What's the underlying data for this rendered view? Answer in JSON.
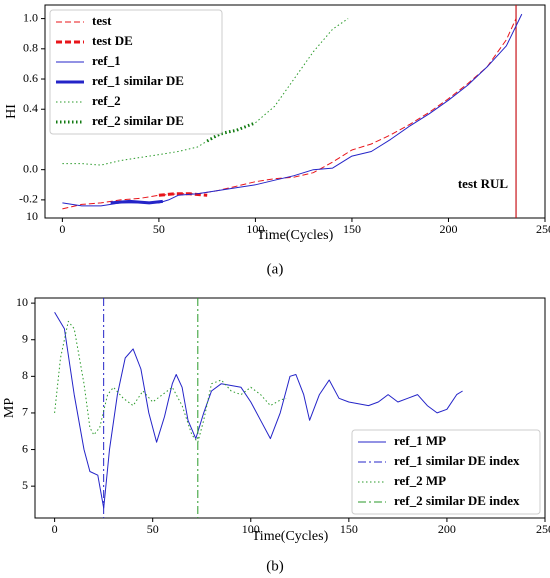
{
  "chart_data": [
    {
      "type": "line",
      "ylabel": "HI",
      "xlabel": "Time(Cycles)",
      "caption": "(a)",
      "xlim": [
        -9,
        250
      ],
      "ylim": [
        -0.32,
        1.09
      ],
      "xticks": [
        0,
        50,
        100,
        150,
        200,
        250
      ],
      "yticks": [
        {
          "value": 1,
          "label": "1.0"
        },
        0.8,
        0.6,
        0.4,
        {
          "value": 0,
          "label": "0.0"
        },
        -0.2
      ],
      "annotations": [
        "10"
      ],
      "legend": "upper left",
      "series": [
        {
          "name": "test",
          "color": "#e8141a",
          "dash": "dashed",
          "width": 1,
          "x": [
            0,
            10,
            20,
            30,
            40,
            50,
            60,
            70,
            80,
            90,
            100,
            110,
            120,
            130,
            140,
            150,
            160,
            170,
            180,
            190,
            200,
            210,
            220,
            230,
            235
          ],
          "values": [
            -0.26,
            -0.23,
            -0.22,
            -0.2,
            -0.19,
            -0.17,
            -0.16,
            -0.16,
            -0.14,
            -0.11,
            -0.08,
            -0.06,
            -0.05,
            -0.02,
            0.05,
            0.13,
            0.17,
            0.23,
            0.3,
            0.38,
            0.47,
            0.57,
            0.68,
            0.86,
            1.0
          ]
        },
        {
          "name": "test DE",
          "color": "#e8141a",
          "dash": "dashed",
          "width": 3,
          "x": [
            50,
            58,
            66,
            75
          ],
          "values": [
            -0.17,
            -0.16,
            -0.16,
            -0.17
          ]
        },
        {
          "name": "ref_1",
          "color": "#2424c8",
          "dash": "solid",
          "width": 1,
          "x": [
            0,
            10,
            20,
            30,
            40,
            50,
            55,
            60,
            70,
            80,
            90,
            100,
            110,
            120,
            130,
            140,
            150,
            160,
            170,
            180,
            190,
            200,
            210,
            220,
            230,
            238
          ],
          "values": [
            -0.22,
            -0.24,
            -0.24,
            -0.22,
            -0.22,
            -0.22,
            -0.2,
            -0.17,
            -0.16,
            -0.14,
            -0.12,
            -0.1,
            -0.07,
            -0.04,
            0.0,
            0.01,
            0.09,
            0.12,
            0.2,
            0.29,
            0.37,
            0.46,
            0.56,
            0.68,
            0.82,
            1.03
          ]
        },
        {
          "name": "ref_1 similar DE",
          "color": "#2424c8",
          "dash": "solid",
          "width": 3,
          "x": [
            25,
            35,
            45,
            52
          ],
          "values": [
            -0.22,
            -0.21,
            -0.22,
            -0.21
          ]
        },
        {
          "name": "ref_2",
          "color": "#2a9a2a",
          "dash": "dotted",
          "width": 1,
          "x": [
            0,
            10,
            20,
            30,
            40,
            50,
            60,
            70,
            75,
            80,
            90,
            100,
            110,
            120,
            130,
            140,
            148
          ],
          "values": [
            0.04,
            0.04,
            0.03,
            0.06,
            0.08,
            0.1,
            0.12,
            0.15,
            0.19,
            0.22,
            0.26,
            0.31,
            0.42,
            0.6,
            0.78,
            0.93,
            1.0
          ]
        },
        {
          "name": "ref_2 similar DE",
          "color": "#127a12",
          "dash": "dotted",
          "width": 3,
          "x": [
            75,
            82,
            90,
            100
          ],
          "values": [
            0.19,
            0.24,
            0.26,
            0.31
          ]
        }
      ],
      "vlines": [
        {
          "x": 235,
          "color": "#c8141a",
          "label": "test RUL"
        }
      ]
    },
    {
      "type": "line",
      "ylabel": "MP",
      "xlabel": "Time(Cycles)",
      "caption": "(b)",
      "xlim": [
        -10,
        250
      ],
      "ylim": [
        4.13,
        10.14
      ],
      "xticks": [
        0,
        50,
        100,
        150,
        200,
        250
      ],
      "yticks": [
        10,
        9,
        8,
        7,
        6,
        5
      ],
      "legend": "lower right",
      "series": [
        {
          "name": "ref_1 MP",
          "color": "#2424c8",
          "dash": "solid",
          "width": 1,
          "x": [
            0,
            5,
            10,
            15,
            18,
            22,
            25,
            28,
            32,
            36,
            40,
            44,
            48,
            52,
            56,
            60,
            62,
            65,
            68,
            72,
            76,
            80,
            85,
            95,
            100,
            105,
            110,
            115,
            120,
            123,
            127,
            130,
            135,
            140,
            145,
            150,
            160,
            165,
            170,
            175,
            180,
            185,
            190,
            195,
            200,
            205,
            208
          ],
          "values": [
            9.75,
            9.3,
            7.5,
            6.0,
            5.4,
            5.3,
            4.4,
            6.0,
            7.5,
            8.5,
            8.75,
            8.2,
            7.0,
            6.2,
            6.9,
            7.8,
            8.05,
            7.7,
            6.8,
            6.3,
            7.0,
            7.6,
            7.8,
            7.7,
            7.3,
            6.8,
            6.3,
            7.0,
            8.0,
            8.05,
            7.5,
            6.8,
            7.5,
            7.9,
            7.4,
            7.3,
            7.2,
            7.3,
            7.5,
            7.3,
            7.4,
            7.5,
            7.2,
            7.0,
            7.1,
            7.5,
            7.6
          ]
        },
        {
          "name": "ref_1 similar DE index",
          "color": "#2424c8",
          "dash": "dashdot",
          "width": 1,
          "vline": 25
        },
        {
          "name": "ref_2 MP",
          "color": "#2a9a2a",
          "dash": "dotted",
          "width": 1,
          "x": [
            0,
            3,
            7,
            10,
            15,
            18,
            20,
            23,
            27,
            30,
            35,
            40,
            45,
            50,
            55,
            60,
            65,
            70,
            73,
            76,
            80,
            85,
            90,
            95,
            100,
            105,
            110,
            115,
            118
          ],
          "values": [
            7.0,
            8.5,
            9.5,
            9.3,
            7.8,
            6.6,
            6.4,
            6.6,
            7.5,
            7.7,
            7.4,
            7.2,
            7.6,
            7.3,
            7.5,
            7.7,
            7.2,
            6.4,
            6.2,
            6.8,
            7.8,
            7.9,
            7.6,
            7.5,
            7.7,
            7.5,
            7.2,
            7.35,
            7.4
          ]
        },
        {
          "name": "ref_2 similar DE index",
          "color": "#2a9a2a",
          "dash": "dashdot",
          "width": 1,
          "vline": 73
        }
      ]
    }
  ]
}
